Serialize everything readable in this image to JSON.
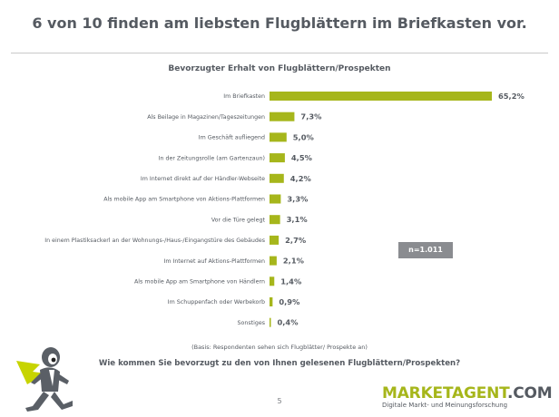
{
  "title": "6 von 10 finden am liebsten Flugblättern im Briefkasten vor.",
  "page_number": "5",
  "sample_note": "n=1.011",
  "basis_note": "(Basis: Respondenten sehen sich Flugblätter/ Prospekte an)",
  "question": "Wie kommen Sie bevorzugt zu den von Ihnen gelesenen Flugblättern/Prospekten?",
  "brand": {
    "main": "MARKETAGENT",
    "suffix": ".COM",
    "tagline": "Digitale Markt- und Meinungsforschung",
    "accent": "#a6b61b"
  },
  "chart_data": {
    "type": "bar",
    "orientation": "horizontal",
    "title": "Bevorzugter Erhalt von Flugblättern/Prospekten",
    "xlabel": "",
    "ylabel": "",
    "xlim": [
      0,
      65.2
    ],
    "grid": false,
    "bar_color": "#a6b61b",
    "value_suffix": "%",
    "categories": [
      "Im Briefkasten",
      "Als Beilage in Magazinen/Tageszeitungen",
      "Im Geschäft aufliegend",
      "In der Zeitungsrolle (am Gartenzaun)",
      "Im Internet direkt auf der Händler-Webseite",
      "Als mobile App am Smartphone von Aktions-Plattformen",
      "Vor die Türe gelegt",
      "In einem Plastiksackerl an der Wohnungs-/Haus-/Eingangstüre des Gebäudes",
      "Im Internet auf Aktions-Plattformen",
      "Als mobile App am Smartphone von Händlern",
      "Im Schuppenfach oder Werbekorb",
      "Sonstiges"
    ],
    "values": [
      65.2,
      7.3,
      5.0,
      4.5,
      4.2,
      3.3,
      3.1,
      2.7,
      2.1,
      1.4,
      0.9,
      0.4
    ],
    "value_labels": [
      "65,2%",
      "7,3%",
      "5,0%",
      "4,5%",
      "4,2%",
      "3,3%",
      "3,1%",
      "2,7%",
      "2,1%",
      "1,4%",
      "0,9%",
      "0,4%"
    ]
  }
}
